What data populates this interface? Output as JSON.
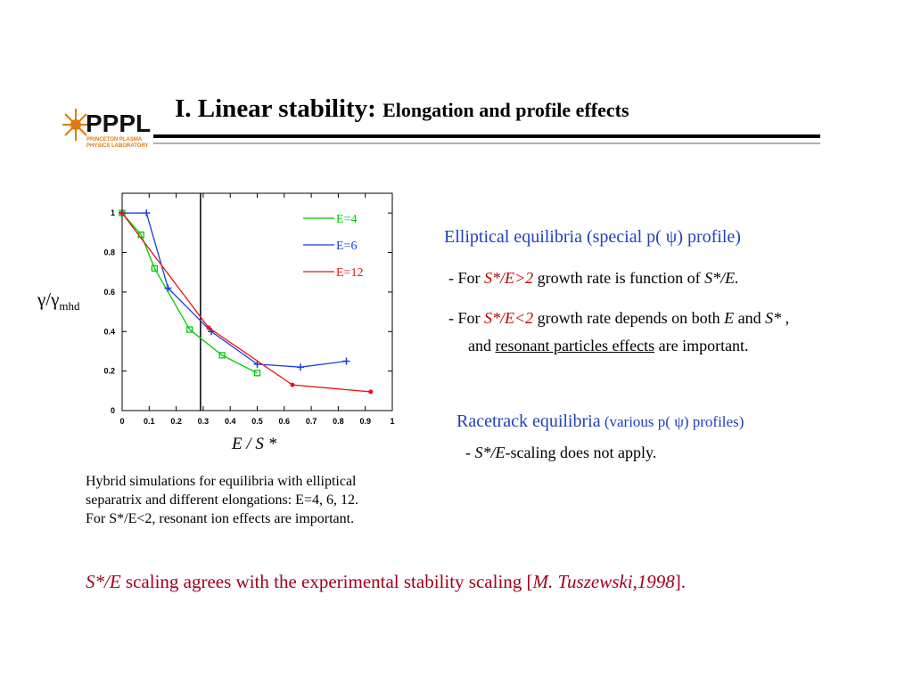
{
  "chart_data": {
    "type": "line",
    "ylabel": "γ/γ",
    "ylabel_sub": "mhd",
    "xlabel": "E / S *",
    "xlim": [
      0,
      1
    ],
    "ylim": [
      0,
      1.1
    ],
    "xticks": [
      0,
      0.1,
      0.2,
      0.3,
      0.4,
      0.5,
      0.6,
      0.7,
      0.8,
      0.9,
      1
    ],
    "yticks": [
      0,
      0.2,
      0.4,
      0.6,
      0.8,
      1
    ],
    "vline": 0.29,
    "legend": "upper right",
    "series": [
      {
        "name": "E=4",
        "color": "#00cc00",
        "marker": "square",
        "x": [
          0,
          0.07,
          0.12,
          0.25,
          0.37,
          0.5
        ],
        "values": [
          1,
          0.89,
          0.72,
          0.41,
          0.28,
          0.19
        ]
      },
      {
        "name": "E=6",
        "color": "#1a3fe0",
        "marker": "plus",
        "x": [
          0,
          0.09,
          0.17,
          0.33,
          0.5,
          0.66,
          0.83
        ],
        "values": [
          1,
          1,
          0.62,
          0.4,
          0.235,
          0.22,
          0.25
        ]
      },
      {
        "name": "E=12",
        "color": "#ee1111",
        "marker": "dot",
        "x": [
          0,
          0.32,
          0.63,
          0.92
        ],
        "values": [
          1,
          0.42,
          0.13,
          0.095
        ]
      }
    ]
  },
  "slide": {
    "logo": "PPPL",
    "logo_sub": [
      "PRINCETON PLASMA",
      "PHYSICS LABORATORY"
    ],
    "title_main": "I. Linear stability:",
    "title_sub": "Elongation and profile effects",
    "caption": [
      "Hybrid simulations for equilibria with elliptical",
      "separatrix and different elongations: E=4, 6, 12.",
      "For S*/E<2, resonant ion effects are important."
    ],
    "elliptical": {
      "heading": "Elliptical equilibria (special p( ψ) profile)",
      "b1": [
        "- For ",
        "S*/E>2",
        " growth rate is function of ",
        "S*/E."
      ],
      "b2": [
        "- For ",
        "S*/E<2",
        " growth rate depends on both ",
        "E",
        " and ",
        "S*",
        " ,"
      ],
      "b3": [
        "and  ",
        "resonant particles effects",
        " are important."
      ]
    },
    "racetrack": {
      "heading": [
        "Racetrack equilibria",
        " (various p( ψ) profiles)"
      ],
      "b1": [
        "- ",
        "S*/E",
        "-scaling does not apply."
      ]
    },
    "conclusion": [
      "S*/E",
      " scaling agrees with the experimental stability scaling [",
      "M. Tuszewski,1998",
      "]."
    ]
  }
}
